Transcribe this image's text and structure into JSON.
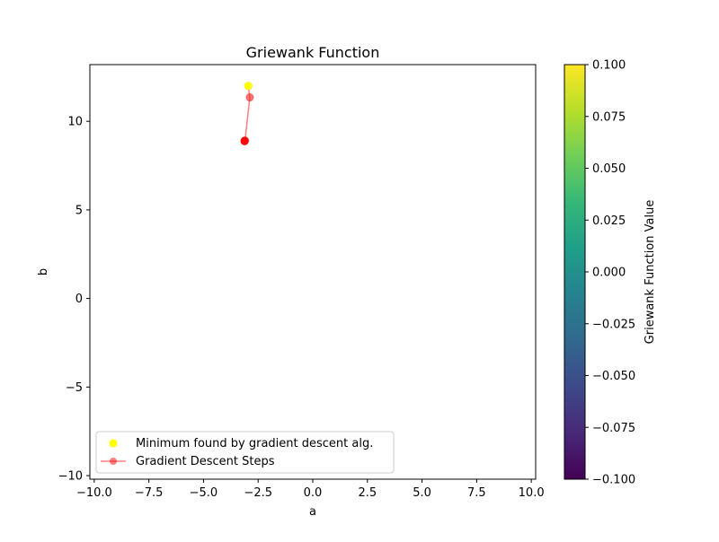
{
  "chart_data": {
    "type": "scatter",
    "title": "Griewank Function",
    "xlabel": "a",
    "ylabel": "b",
    "xlim": [
      -10.2,
      10.2
    ],
    "ylim": [
      -10.2,
      13.2
    ],
    "xticks": [
      -10.0,
      -7.5,
      -5.0,
      -2.5,
      0.0,
      2.5,
      5.0,
      7.5,
      10.0
    ],
    "xtick_labels": [
      "−10.0",
      "−7.5",
      "−5.0",
      "−2.5",
      "0.0",
      "2.5",
      "5.0",
      "7.5",
      "10.0"
    ],
    "yticks": [
      -10,
      -5,
      0,
      5,
      10
    ],
    "ytick_labels": [
      "−10",
      "−5",
      "0",
      "5",
      "10"
    ],
    "series": [
      {
        "name": "Gradient Descent Steps",
        "kind": "line-markers",
        "color": "#ff0000",
        "alpha": 0.5,
        "x": [
          -2.95,
          -2.88,
          -3.1,
          -3.12,
          -3.12,
          -3.12,
          -3.12
        ],
        "y": [
          12.0,
          11.35,
          8.92,
          8.9,
          8.89,
          8.88,
          8.87
        ]
      },
      {
        "name": "Minimum found by gradient descent alg.",
        "kind": "scatter",
        "color": "#ffff00",
        "x": [
          -2.95
        ],
        "y": [
          12.0
        ]
      }
    ],
    "legend": {
      "location": "lower-left",
      "entries": [
        {
          "label": "Minimum found by gradient descent alg.",
          "color": "#ffff00",
          "kind": "scatter"
        },
        {
          "label": "Gradient Descent Steps",
          "color": "#ff0000",
          "kind": "line-markers"
        }
      ]
    },
    "colorbar": {
      "label": "Griewank Function Value",
      "colormap": "viridis",
      "range": [
        -0.1,
        0.1
      ],
      "ticks": [
        -0.1,
        -0.075,
        -0.05,
        -0.025,
        0.0,
        0.025,
        0.05,
        0.075,
        0.1
      ],
      "tick_labels": [
        "−0.100",
        "−0.075",
        "−0.050",
        "−0.025",
        "0.000",
        "0.025",
        "0.050",
        "0.075",
        "0.100"
      ],
      "colors": [
        "#440154",
        "#482878",
        "#3e4989",
        "#31688e",
        "#26828e",
        "#1f9e89",
        "#35b779",
        "#6ece58",
        "#b5de2b",
        "#fde725"
      ]
    },
    "grid": false
  }
}
